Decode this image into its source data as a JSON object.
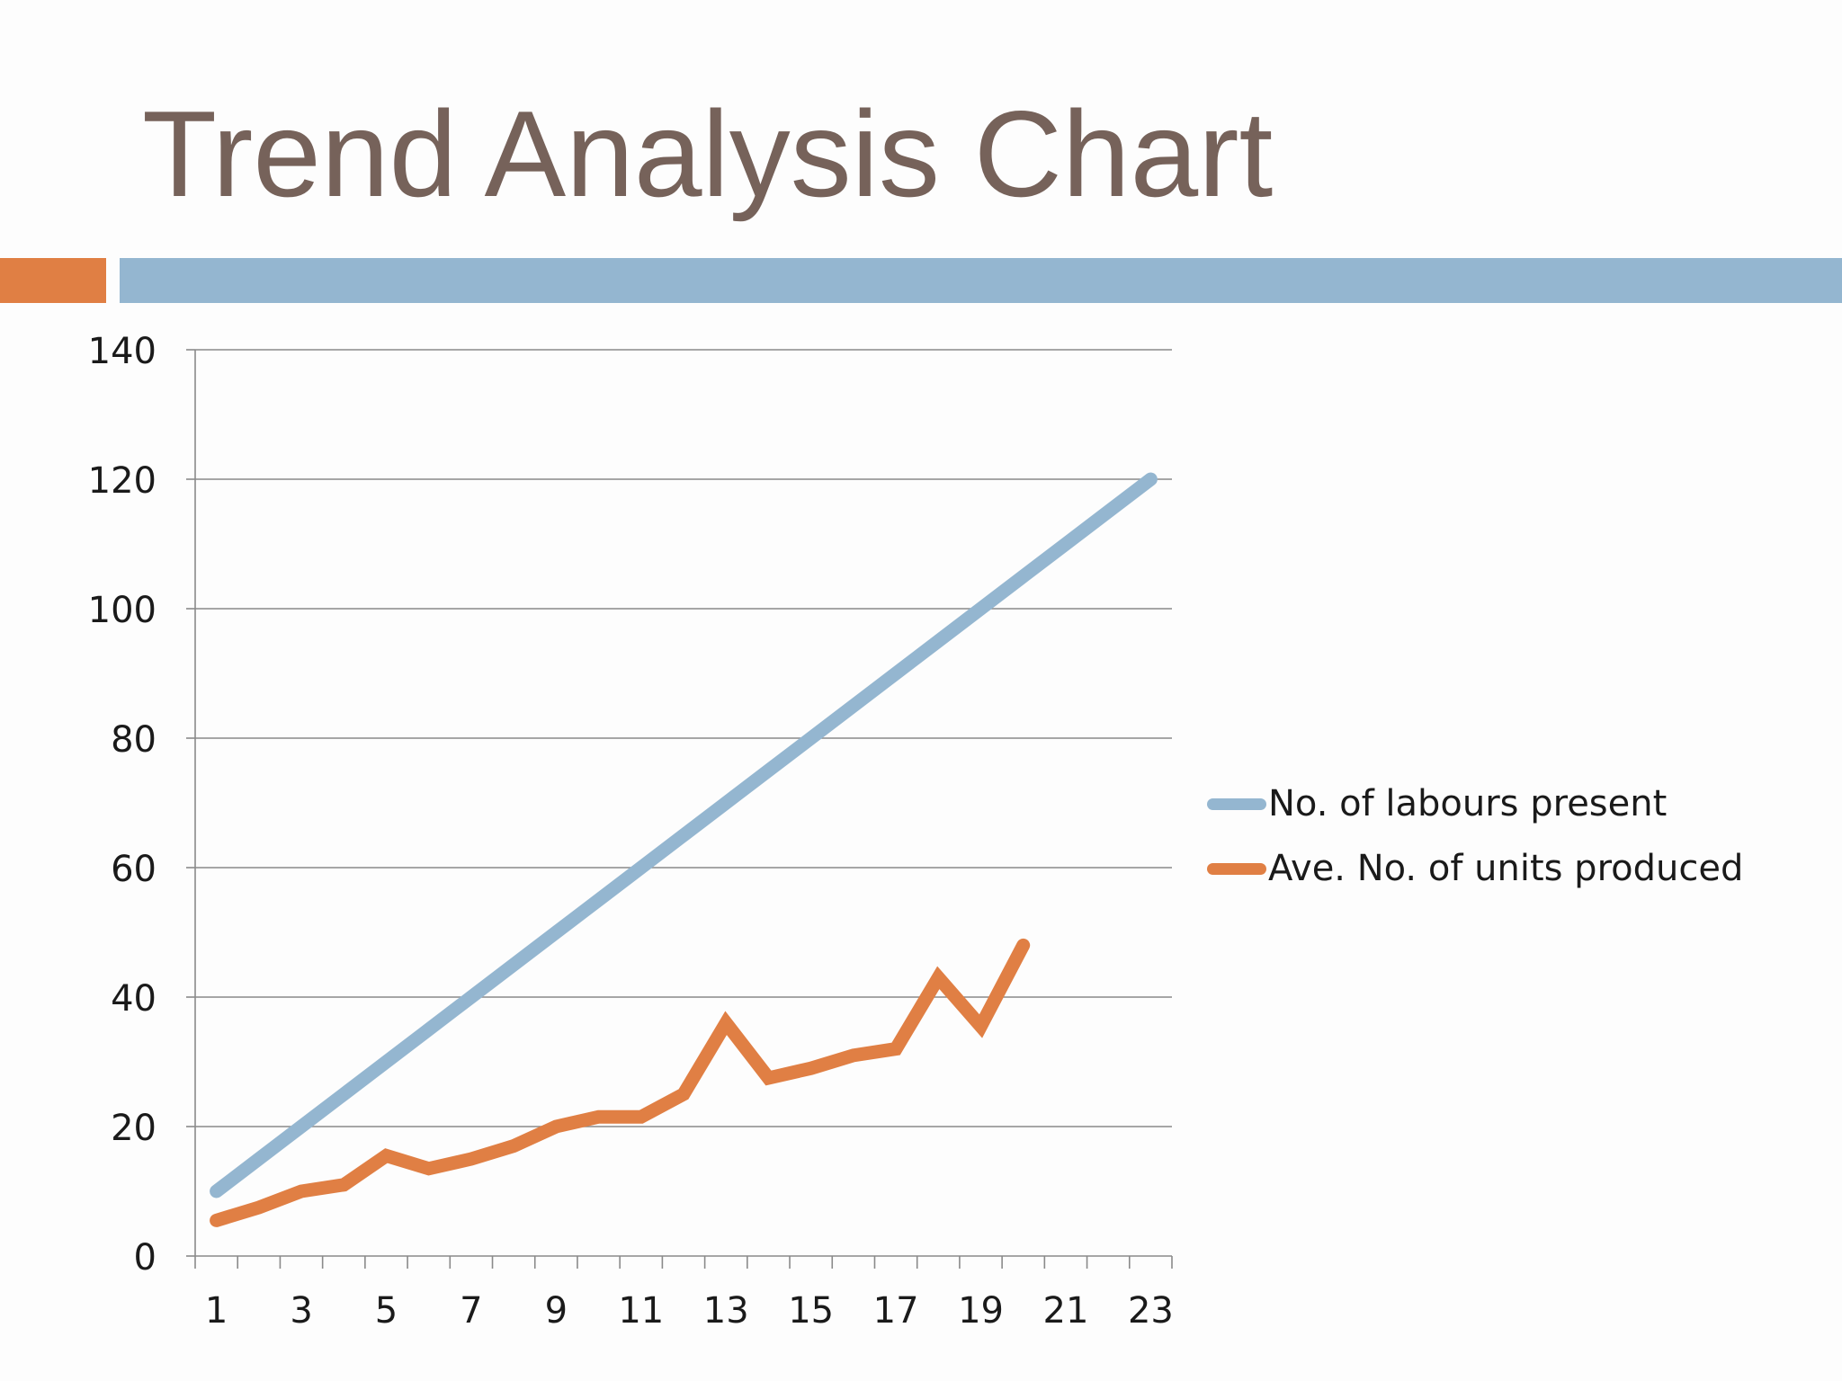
{
  "slide": {
    "title": "Trend Analysis Chart",
    "accent_colors": {
      "orange": "#e07f44",
      "blue": "#94b6d0"
    }
  },
  "chart_data": {
    "type": "line",
    "title": "",
    "xlabel": "",
    "ylabel": "",
    "ylim": [
      0,
      140
    ],
    "yticks": [
      0,
      20,
      40,
      60,
      80,
      100,
      120,
      140
    ],
    "xlim": [
      1,
      23
    ],
    "xtick_labels": [
      "1",
      "3",
      "5",
      "7",
      "9",
      "11",
      "13",
      "15",
      "17",
      "19",
      "21",
      "23"
    ],
    "grid": "horizontal",
    "legend_position": "right",
    "series": [
      {
        "name": "No. of labours present",
        "color": "#94b6d0",
        "x": [
          1,
          2,
          3,
          4,
          5,
          6,
          7,
          8,
          9,
          10,
          11,
          12,
          13,
          14,
          15,
          16,
          17,
          18,
          19,
          20,
          21,
          22,
          23
        ],
        "values": [
          10,
          15,
          20,
          25,
          30,
          35,
          40,
          45,
          50,
          55,
          60,
          65,
          70,
          75,
          80,
          85,
          90,
          95,
          100,
          105,
          110,
          115,
          120
        ]
      },
      {
        "name": "Ave. No. of units produced",
        "color": "#e07f44",
        "x": [
          1,
          2,
          3,
          4,
          5,
          6,
          7,
          8,
          9,
          10,
          11,
          12,
          13,
          14,
          15,
          16,
          17,
          18,
          19,
          20
        ],
        "values": [
          5.5,
          7.5,
          10,
          11,
          15.5,
          13.5,
          15,
          17,
          20,
          21.5,
          21.5,
          25,
          36,
          27.5,
          29,
          31,
          32,
          43,
          35.5,
          48
        ]
      }
    ]
  }
}
